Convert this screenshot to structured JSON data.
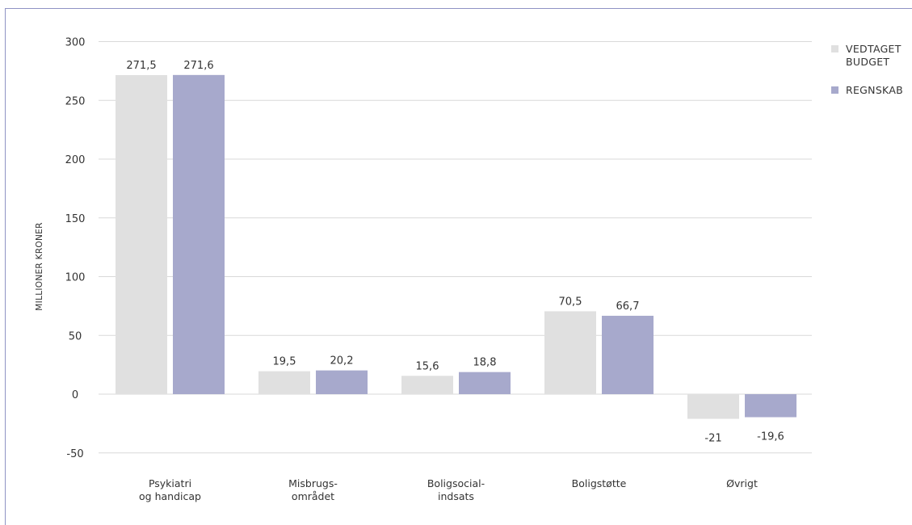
{
  "chart_data": {
    "type": "bar",
    "categories": [
      [
        "Psykiatri",
        "og handicap"
      ],
      [
        "Misbrugs-",
        "området"
      ],
      [
        "Boligsocial-",
        "indsats"
      ],
      [
        "Boligstøtte"
      ],
      [
        "Øvrigt"
      ]
    ],
    "series": [
      {
        "name": [
          "VEDTAGET",
          "BUDGET"
        ],
        "color": "#e0e0e0",
        "values": [
          271.5,
          19.5,
          15.6,
          70.5,
          -21
        ],
        "labels": [
          "271,5",
          "19,5",
          "15,6",
          "70,5",
          "-21"
        ]
      },
      {
        "name": [
          "REGNSKAB"
        ],
        "color": "#a7a9cc",
        "values": [
          271.6,
          20.2,
          18.8,
          66.7,
          -19.6
        ],
        "labels": [
          "271,6",
          "20,2",
          "18,8",
          "66,7",
          "-19,6"
        ]
      }
    ],
    "title": "",
    "xlabel": "",
    "ylabel": "MILLIONER KRONER",
    "ylim": [
      -50,
      300
    ],
    "yticks": [
      300,
      250,
      200,
      150,
      100,
      50,
      0,
      -50
    ],
    "ytick_labels": [
      "300",
      "250",
      "200",
      "150",
      "100",
      "50",
      "0",
      "-50"
    ],
    "grid": true,
    "legend_position": "top-right"
  }
}
